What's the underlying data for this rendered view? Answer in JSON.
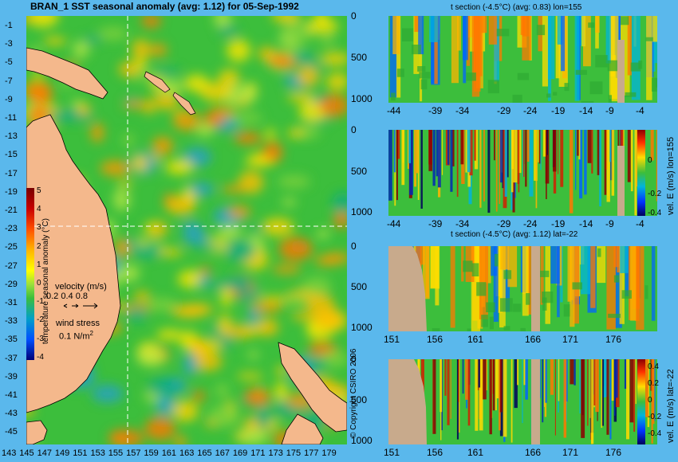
{
  "map": {
    "title": "BRAN_1  SST seasonal anomaly (avg: 1.12) for 05-Sep-1992",
    "lat_ticks": [
      "-1",
      "-3",
      "-5",
      "-7",
      "-9",
      "-11",
      "-13",
      "-15",
      "-17",
      "-19",
      "-21",
      "-23",
      "-25",
      "-27",
      "-29",
      "-31",
      "-33",
      "-35",
      "-37",
      "-39",
      "-41",
      "-43",
      "-45"
    ],
    "lon_ticks": [
      "143",
      "145",
      "147",
      "149",
      "151",
      "153",
      "155",
      "157",
      "159",
      "161",
      "163",
      "165",
      "167",
      "169",
      "171",
      "173",
      "175",
      "177",
      "179"
    ],
    "colorbar": {
      "label": "temperature seasonal anomaly (°C)",
      "ticks": [
        "5",
        "4",
        "3",
        "2",
        "1",
        "0",
        "-1",
        "-2",
        "-3",
        "-4"
      ]
    },
    "velocity_legend": {
      "title": "velocity (m/s)",
      "values": "0.2 0.4 0.8"
    },
    "wind_legend": {
      "title": "wind stress",
      "value": "0.1 N/m",
      "sup": "2"
    },
    "copyright": "© Copyright CSIRO 2006"
  },
  "panels": {
    "p1": {
      "title": "t section (-4.5°C) (avg: 0.83) lon=155",
      "x_ticks": [
        "-44",
        "-39",
        "-34",
        "-29",
        "-24",
        "-19",
        "-14",
        "-9",
        "-4"
      ],
      "y_ticks": [
        "0",
        "500",
        "1000"
      ]
    },
    "p2": {
      "title": "",
      "x_ticks": [
        "-44",
        "-39",
        "-34",
        "-29",
        "-24",
        "-19",
        "-14",
        "-9",
        "-4"
      ],
      "y_ticks": [
        "0",
        "500",
        "1000"
      ],
      "cb_label": "vel. E (m/s) lon=155",
      "cb_ticks": [
        "0",
        "-0.2",
        "-0.4"
      ]
    },
    "p3": {
      "title": "t section (-4.5°C) (avg: 1.12) lat=-22",
      "x_ticks": [
        "151",
        "156",
        "161",
        "166",
        "171",
        "176"
      ],
      "y_ticks": [
        "0",
        "500",
        "1000"
      ]
    },
    "p4": {
      "title": "",
      "x_ticks": [
        "151",
        "156",
        "161",
        "166",
        "171",
        "176"
      ],
      "y_ticks": [
        "0",
        "500",
        "1000"
      ],
      "cb_label": "vel. E (m/s) lat=-22",
      "cb_ticks": [
        "0.4",
        "0.2",
        "0",
        "-0.2",
        "-0.4"
      ]
    }
  },
  "colors": {
    "background": "#5ab8ec",
    "land": "#f4b88c",
    "section_land": "#c8aa8c",
    "field": "#3cbe3c"
  }
}
